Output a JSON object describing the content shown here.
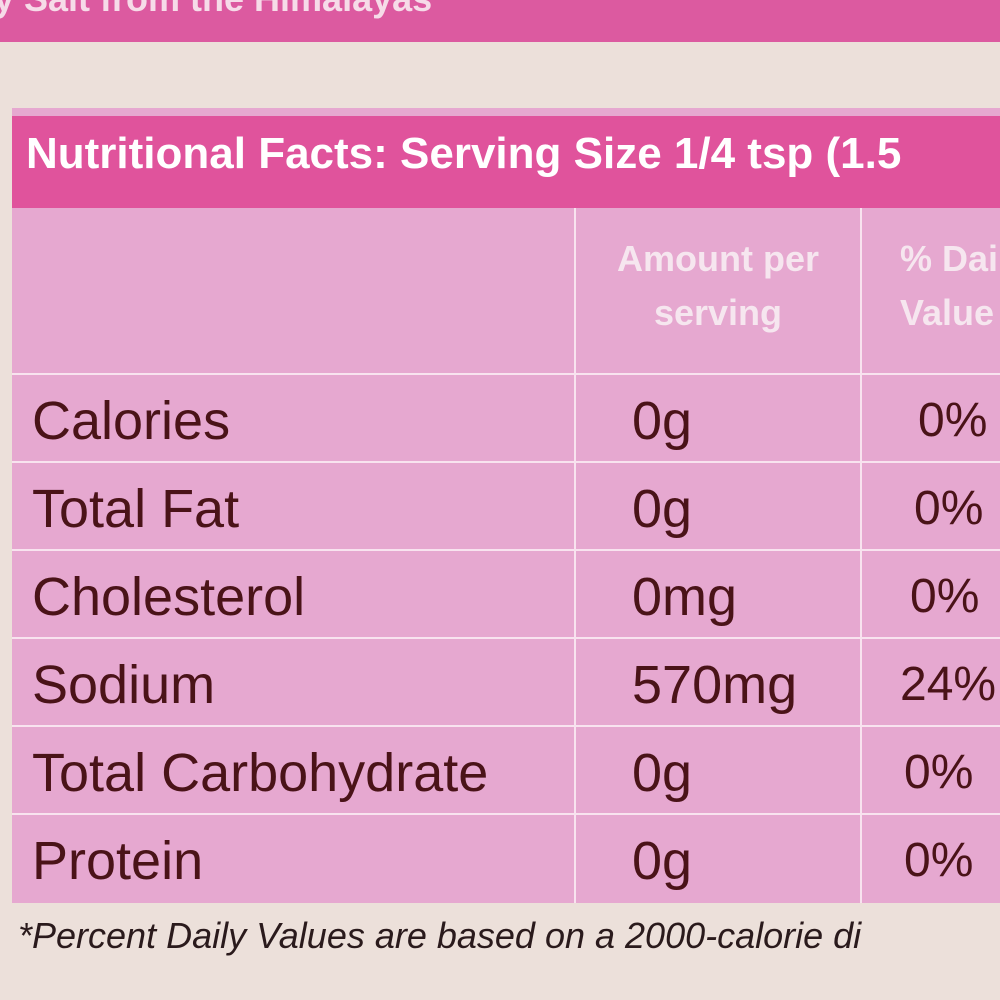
{
  "top_banner": "y Salt from the Himalayas",
  "header": "Nutritional Facts: Serving Size 1/4 tsp (1.5",
  "columns": {
    "amount": [
      "Amount per",
      "serving"
    ],
    "daily": [
      "% Dai",
      "Value"
    ]
  },
  "rows": [
    {
      "label": "Calories",
      "amount": "0g",
      "daily": "0%"
    },
    {
      "label": "Total Fat",
      "amount": "0g",
      "daily": "0%"
    },
    {
      "label": "Cholesterol",
      "amount": "0mg",
      "daily": "0%"
    },
    {
      "label": "Sodium",
      "amount": "570mg",
      "daily": "24%"
    },
    {
      "label": "Total Carbohydrate",
      "amount": "0g",
      "daily": "0%"
    },
    {
      "label": "Protein",
      "amount": "0g",
      "daily": "0%"
    }
  ],
  "footer": "*Percent Daily Values are based on a 2000-calorie di"
}
